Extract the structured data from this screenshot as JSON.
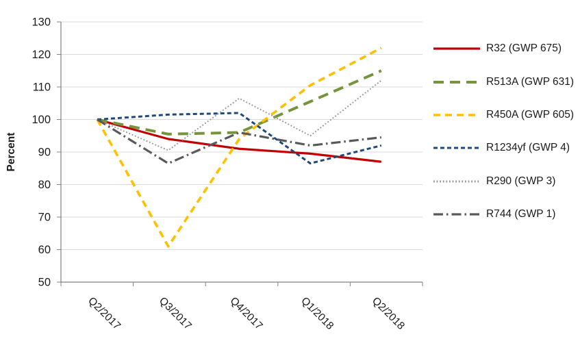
{
  "chart_data": {
    "type": "line",
    "title": "",
    "xlabel": "",
    "ylabel": "Percent",
    "ylim": [
      50,
      130
    ],
    "ytick_step": 10,
    "grid": true,
    "legend_position": "right",
    "categories": [
      "Q2/2017",
      "Q3/2017",
      "Q4/2017",
      "Q1/2018",
      "Q2/2018"
    ],
    "series": [
      {
        "name": "R32 (GWP 675)",
        "color": "#C00000",
        "dash": "solid",
        "width": 3.2,
        "values": [
          100,
          94,
          91,
          89.5,
          87
        ]
      },
      {
        "name": "R513A (GWP 631)",
        "color": "#77933C",
        "dash": "long-dash",
        "width": 4,
        "values": [
          100,
          95.5,
          96,
          105.5,
          115
        ]
      },
      {
        "name": "R450A (GWP 605)",
        "color": "#FFC000",
        "dash": "dash",
        "width": 3.6,
        "values": [
          100,
          61,
          94,
          110.5,
          122
        ]
      },
      {
        "name": "R1234yf (GWP 4)",
        "color": "#1F497D",
        "dash": "short-dash",
        "width": 3,
        "values": [
          100,
          101.5,
          102,
          86.5,
          92
        ]
      },
      {
        "name": "R290 (GWP 3)",
        "color": "#969696",
        "dash": "dot",
        "width": 2,
        "values": [
          100,
          90.5,
          106.5,
          95,
          112
        ]
      },
      {
        "name": "R744 (GWP 1)",
        "color": "#595959",
        "dash": "dash-dot",
        "width": 3.2,
        "values": [
          100,
          86.5,
          96,
          92,
          94.5
        ]
      }
    ],
    "colors": {
      "gridline": "#D9D9D9",
      "axis": "#808080",
      "text": "#1a1a1a",
      "background": "#FFFFFF"
    }
  }
}
